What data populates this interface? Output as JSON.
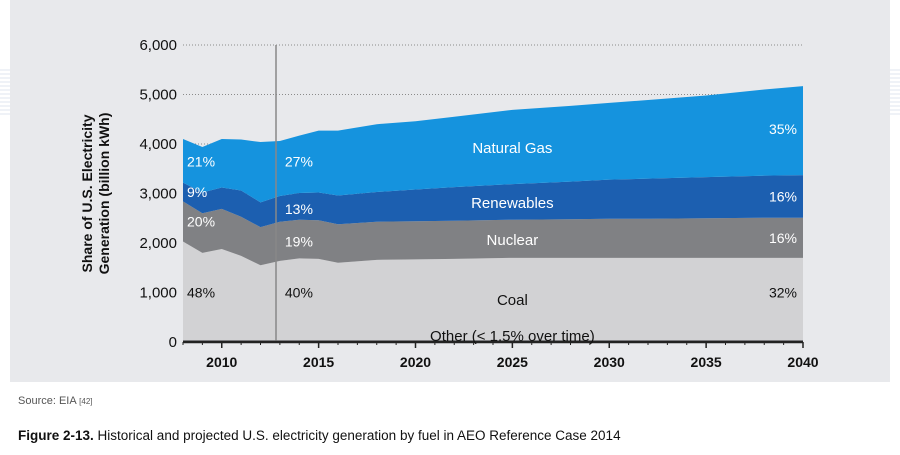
{
  "source": {
    "label": "Source: EIA",
    "ref": "[42]"
  },
  "caption": {
    "figure": "Figure 2-13.",
    "text": "Historical and projected U.S. electricity generation by fuel in AEO Reference Case 2014"
  },
  "colors": {
    "panel": "#e8e9ec",
    "coal": "#d2d2d4",
    "nuclear": "#808184",
    "renewables": "#1c5fb0",
    "natural_gas": "#1593de",
    "other": "#9a9b9e",
    "grid": "#8a8a8a",
    "divider": "#888888"
  },
  "chart_data": {
    "type": "area",
    "stacked": true,
    "ylabel": "Share of U.S. Electricity Generation (billion kWh)",
    "xlabel": "",
    "xlim": [
      2008,
      2040
    ],
    "ylim": [
      0,
      6000
    ],
    "yticks": [
      0,
      1000,
      2000,
      3000,
      4000,
      5000,
      6000
    ],
    "ytick_labels": [
      "0",
      "1,000",
      "2,000",
      "3,000",
      "4,000",
      "5,000",
      "6,000"
    ],
    "xticks": [
      2010,
      2015,
      2020,
      2025,
      2030,
      2035,
      2040
    ],
    "xtick_labels": [
      "2010",
      "2015",
      "2020",
      "2025",
      "2030",
      "2035",
      "2040"
    ],
    "grid": "horizontal dotted",
    "history_divider_x": 2012.8,
    "x": [
      2008,
      2009,
      2010,
      2011,
      2012,
      2013,
      2014,
      2015,
      2016,
      2018,
      2020,
      2022,
      2025,
      2028,
      2030,
      2032,
      2035,
      2038,
      2040
    ],
    "series": [
      {
        "name": "Other (< 1.5% over time)",
        "key": "other",
        "values": [
          40,
          40,
          40,
          40,
          40,
          40,
          40,
          40,
          40,
          40,
          40,
          40,
          40,
          40,
          40,
          40,
          40,
          40,
          40
        ]
      },
      {
        "name": "Coal",
        "key": "coal",
        "values": [
          1990,
          1760,
          1840,
          1700,
          1510,
          1600,
          1650,
          1640,
          1560,
          1620,
          1630,
          1640,
          1660,
          1660,
          1660,
          1660,
          1660,
          1660,
          1660
        ]
      },
      {
        "name": "Nuclear",
        "key": "nuclear",
        "values": [
          810,
          800,
          810,
          790,
          770,
          790,
          780,
          780,
          780,
          770,
          770,
          770,
          770,
          780,
          790,
          790,
          800,
          810,
          810
        ]
      },
      {
        "name": "Renewables",
        "key": "renewables",
        "values": [
          380,
          420,
          430,
          530,
          500,
          520,
          540,
          560,
          580,
          600,
          640,
          680,
          720,
          760,
          790,
          810,
          830,
          850,
          860
        ]
      },
      {
        "name": "Natural Gas",
        "key": "natural_gas",
        "values": [
          880,
          920,
          980,
          1030,
          1220,
          1110,
          1160,
          1250,
          1310,
          1370,
          1380,
          1420,
          1500,
          1530,
          1550,
          1590,
          1650,
          1740,
          1800
        ]
      }
    ],
    "annotations": {
      "labels": [
        {
          "text": "Natural Gas",
          "series": "natural_gas"
        },
        {
          "text": "Renewables",
          "series": "renewables"
        },
        {
          "text": "Nuclear",
          "series": "nuclear"
        },
        {
          "text": "Coal",
          "series": "coal"
        },
        {
          "text": "Other (< 1.5% over time)",
          "series": "other"
        }
      ],
      "shares": [
        {
          "year": 2008,
          "series": "natural_gas",
          "text": "21%"
        },
        {
          "year": 2008,
          "series": "renewables",
          "text": "9%"
        },
        {
          "year": 2008,
          "series": "nuclear",
          "text": "20%"
        },
        {
          "year": 2008,
          "series": "coal",
          "text": "48%"
        },
        {
          "year": 2013,
          "series": "natural_gas",
          "text": "27%"
        },
        {
          "year": 2013,
          "series": "renewables",
          "text": "13%"
        },
        {
          "year": 2013,
          "series": "nuclear",
          "text": "19%"
        },
        {
          "year": 2013,
          "series": "coal",
          "text": "40%"
        },
        {
          "year": 2040,
          "series": "natural_gas",
          "text": "35%"
        },
        {
          "year": 2040,
          "series": "renewables",
          "text": "16%"
        },
        {
          "year": 2040,
          "series": "nuclear",
          "text": "16%"
        },
        {
          "year": 2040,
          "series": "coal",
          "text": "32%"
        }
      ]
    }
  }
}
